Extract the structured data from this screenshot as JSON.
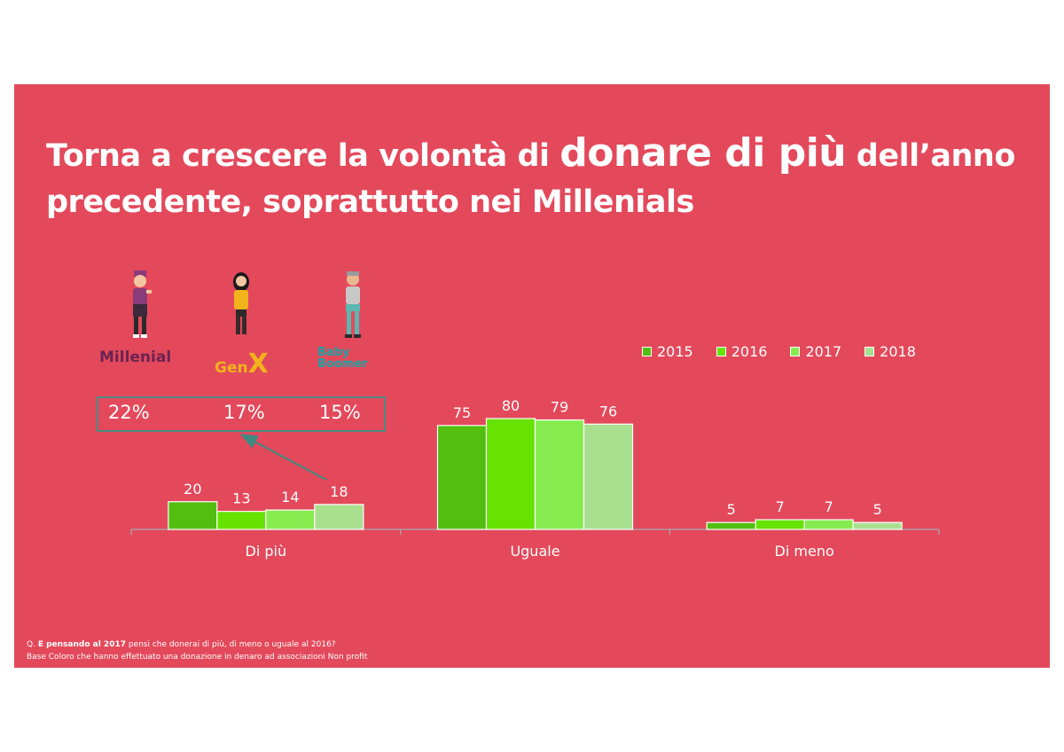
{
  "title": {
    "part1": "Torna a crescere la volontà di ",
    "highlight": "donare di più",
    "part2": " dell’anno precedente, soprattutto nei Millenials"
  },
  "generations": [
    {
      "label": "Millenial",
      "pct": "22%",
      "color": "#6b2352"
    },
    {
      "label": "GenX",
      "label_gen": "Gen",
      "label_x": "X",
      "pct": "17%",
      "color": "#f2b21b"
    },
    {
      "label": "Baby Boomer",
      "label_baby": "Baby",
      "label_boomer": "Boomer",
      "pct": "15%",
      "color": "#1aa6a6"
    }
  ],
  "chart_data": {
    "type": "bar",
    "categories": [
      "Di più",
      "Uguale",
      "Di meno"
    ],
    "series": [
      {
        "name": "2015",
        "values": [
          20,
          75,
          5
        ],
        "color": "#52be0f"
      },
      {
        "name": "2016",
        "values": [
          13,
          80,
          7
        ],
        "color": "#66e300"
      },
      {
        "name": "2017",
        "values": [
          14,
          79,
          7
        ],
        "color": "#86eb4f"
      },
      {
        "name": "2018",
        "values": [
          18,
          76,
          5
        ],
        "color": "#a8e090"
      }
    ],
    "ylim": [
      0,
      100
    ],
    "legend": "top-right",
    "grid": false
  },
  "footnote": {
    "q_prefix": "Q. ",
    "q_bold": "E pensando al 2017",
    "q_rest": " pensi che donerai di più, di meno o uguale al 2016?",
    "base": "Base Coloro che hanno effettuato una donazione in denaro ad associazioni Non profit"
  }
}
